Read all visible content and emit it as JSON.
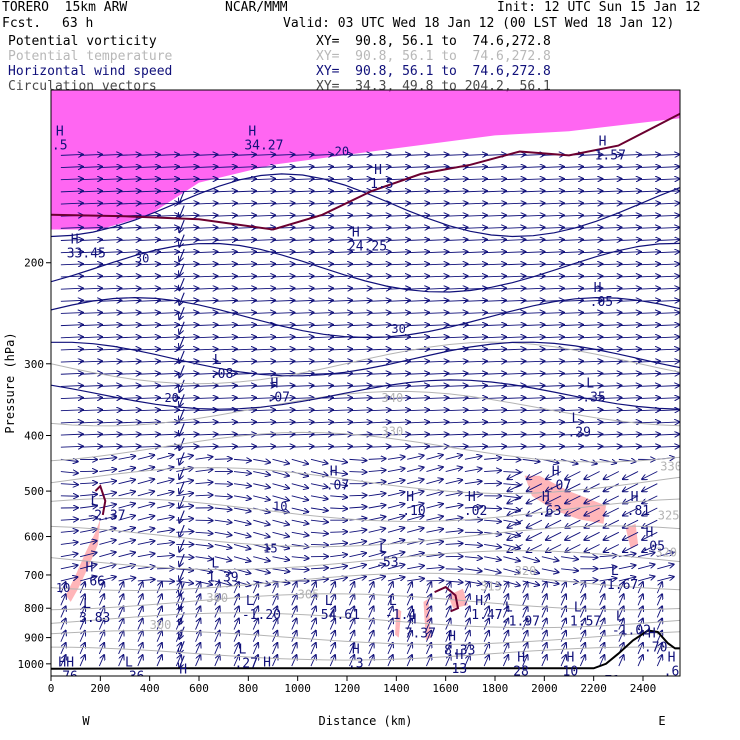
{
  "header": {
    "model": "TORERO  15km ARW",
    "fcst_label": "Fcst.",
    "fcst_value": "63 h",
    "org": "NCAR/MMM",
    "init": "Init: 12 UTC Sun 15 Jan 12",
    "valid": "Valid: 03 UTC Wed 18 Jan 12 (00 LST Wed 18 Jan 12)",
    "fields": [
      {
        "name": "Potential vorticity",
        "xy": "XY=  90.8, 56.1 to  74.6,272.8"
      },
      {
        "name": "Potential temperature",
        "xy": "XY=  90.8, 56.1 to  74.6,272.8"
      },
      {
        "name": "Horizontal wind speed",
        "xy": "XY=  90.8, 56.1 to  74.6,272.8"
      },
      {
        "name": "Circulation vectors",
        "xy": "XY=  34.3, 49.8 to 204.2, 56.1"
      }
    ]
  },
  "colors": {
    "pv_shade_light": "#ffb6b9",
    "pv_shade_strong": "#ff33ee",
    "pv_contour": "#6b0030",
    "theta": "#b4b4b4",
    "wind_contour": "#10107a",
    "vectors": "#10107a",
    "terrain": "#000000"
  },
  "chart_data": {
    "type": "cross-section",
    "xlabel": "Distance (km)",
    "ylabel": "Pressure (hPa)",
    "xlim": [
      0,
      2550
    ],
    "ylim": [
      100,
      1050
    ],
    "y_scale": "log",
    "x_ticks": [
      0,
      200,
      400,
      600,
      800,
      1000,
      1200,
      1400,
      1600,
      1800,
      2000,
      2200,
      2400
    ],
    "y_ticks": [
      200,
      300,
      400,
      500,
      600,
      700,
      800,
      900,
      1000
    ],
    "end_labels": {
      "left": "W",
      "right": "E"
    },
    "terrain": [
      [
        0,
        1020
      ],
      [
        500,
        1018
      ],
      [
        560,
        1018
      ],
      [
        1000,
        1018
      ],
      [
        1500,
        1018
      ],
      [
        2000,
        1018
      ],
      [
        2200,
        1018
      ],
      [
        2250,
        1000
      ],
      [
        2300,
        960
      ],
      [
        2360,
        910
      ],
      [
        2420,
        875
      ],
      [
        2460,
        880
      ],
      [
        2500,
        920
      ],
      [
        2530,
        940
      ],
      [
        2550,
        940
      ]
    ],
    "pv_strong_region": [
      [
        0,
        100
      ],
      [
        2550,
        100
      ],
      [
        2550,
        112
      ],
      [
        2100,
        118
      ],
      [
        1800,
        120
      ],
      [
        1300,
        128
      ],
      [
        900,
        135
      ],
      [
        600,
        145
      ],
      [
        400,
        165
      ],
      [
        200,
        175
      ],
      [
        0,
        175
      ]
    ],
    "pv_light_blobs": [
      [
        [
          60,
          760
        ],
        [
          100,
          700
        ],
        [
          140,
          640
        ],
        [
          180,
          590
        ],
        [
          200,
          560
        ],
        [
          190,
          620
        ],
        [
          150,
          680
        ],
        [
          110,
          740
        ],
        [
          80,
          780
        ]
      ],
      [
        [
          1920,
          470
        ],
        [
          1980,
          470
        ],
        [
          2100,
          500
        ],
        [
          2250,
          530
        ],
        [
          2240,
          570
        ],
        [
          2140,
          560
        ],
        [
          2040,
          540
        ],
        [
          1950,
          510
        ]
      ],
      [
        [
          2330,
          580
        ],
        [
          2370,
          570
        ],
        [
          2380,
          620
        ],
        [
          2350,
          630
        ]
      ],
      [
        [
          1610,
          760
        ],
        [
          1670,
          740
        ],
        [
          1690,
          790
        ],
        [
          1630,
          800
        ]
      ],
      [
        [
          1510,
          780
        ],
        [
          1530,
          770
        ],
        [
          1540,
          900
        ],
        [
          1520,
          910
        ]
      ],
      [
        [
          1400,
          800
        ],
        [
          1420,
          810
        ],
        [
          1410,
          900
        ],
        [
          1395,
          890
        ]
      ]
    ],
    "pv_contours": [
      [
        [
          0,
          165
        ],
        [
          300,
          166
        ],
        [
          600,
          168
        ],
        [
          900,
          175
        ],
        [
          1100,
          165
        ],
        [
          1300,
          150
        ],
        [
          1500,
          140
        ],
        [
          1700,
          135
        ],
        [
          1900,
          128
        ],
        [
          2100,
          130
        ],
        [
          2300,
          125
        ],
        [
          2550,
          110
        ]
      ],
      [
        [
          180,
          500
        ],
        [
          200,
          490
        ],
        [
          220,
          520
        ],
        [
          210,
          550
        ]
      ],
      [
        [
          1555,
          750
        ],
        [
          1600,
          735
        ],
        [
          1640,
          760
        ],
        [
          1650,
          800
        ],
        [
          1620,
          810
        ]
      ]
    ],
    "theta_labels": [
      {
        "x": 1340,
        "y": 350,
        "text": "340"
      },
      {
        "x": 1340,
        "y": 400,
        "text": "330"
      },
      {
        "x": 2470,
        "y": 460,
        "text": "330"
      },
      {
        "x": 2460,
        "y": 560,
        "text": "325"
      },
      {
        "x": 2450,
        "y": 650,
        "text": "320"
      },
      {
        "x": 1880,
        "y": 700,
        "text": "320"
      },
      {
        "x": 1740,
        "y": 745,
        "text": "315"
      },
      {
        "x": 1000,
        "y": 770,
        "text": "305"
      },
      {
        "x": 630,
        "y": 780,
        "text": "300"
      },
      {
        "x": 400,
        "y": 870,
        "text": "300"
      }
    ],
    "wind_labels": [
      {
        "x": 1150,
        "y": 130,
        "text": "20"
      },
      {
        "x": 340,
        "y": 200,
        "text": "30"
      },
      {
        "x": 1380,
        "y": 265,
        "text": "30"
      },
      {
        "x": 460,
        "y": 350,
        "text": "20"
      },
      {
        "x": 20,
        "y": 750,
        "text": "10"
      },
      {
        "x": 900,
        "y": 540,
        "text": "10"
      },
      {
        "x": 860,
        "y": 640,
        "text": "15"
      }
    ],
    "hl_labels": [
      {
        "x": 20,
        "y": 120,
        "letter": "H",
        "value": ".5"
      },
      {
        "x": 800,
        "y": 120,
        "letter": "H",
        "value": "34.27"
      },
      {
        "x": 1310,
        "y": 140,
        "letter": "H",
        "value": "1.5"
      },
      {
        "x": 2220,
        "y": 125,
        "letter": "H",
        "value": "1.57"
      },
      {
        "x": 80,
        "y": 185,
        "letter": "H",
        "value": "33.45"
      },
      {
        "x": 1220,
        "y": 180,
        "letter": "H",
        "value": "24.25"
      },
      {
        "x": 2200,
        "y": 225,
        "letter": "H",
        "value": ".05"
      },
      {
        "x": 660,
        "y": 300,
        "letter": "L",
        "value": ".08"
      },
      {
        "x": 890,
        "y": 330,
        "letter": "H",
        "value": ".07"
      },
      {
        "x": 2170,
        "y": 330,
        "letter": "L",
        "value": ".35"
      },
      {
        "x": 2110,
        "y": 380,
        "letter": "L",
        "value": ".29"
      },
      {
        "x": 1130,
        "y": 470,
        "letter": "H",
        "value": ".07"
      },
      {
        "x": 1440,
        "y": 520,
        "letter": "H",
        "value": ".10"
      },
      {
        "x": 1690,
        "y": 520,
        "letter": "H",
        "value": ".02"
      },
      {
        "x": 1990,
        "y": 520,
        "letter": "H",
        "value": ".63"
      },
      {
        "x": 2350,
        "y": 520,
        "letter": "H",
        "value": ".81"
      },
      {
        "x": 2030,
        "y": 470,
        "letter": "H",
        "value": ".07"
      },
      {
        "x": 160,
        "y": 530,
        "letter": "L",
        "value": "-2.37"
      },
      {
        "x": 2410,
        "y": 600,
        "letter": "H",
        "value": ".05"
      },
      {
        "x": 1330,
        "y": 640,
        "letter": "L",
        "value": ".53"
      },
      {
        "x": 650,
        "y": 680,
        "letter": "L",
        "value": "1.39"
      },
      {
        "x": 2270,
        "y": 700,
        "letter": "L",
        "value": "1.67"
      },
      {
        "x": 140,
        "y": 690,
        "letter": "H",
        "value": ".66"
      },
      {
        "x": 130,
        "y": 800,
        "letter": "L",
        "value": "3.83"
      },
      {
        "x": 790,
        "y": 790,
        "letter": "L",
        "value": "-1.20"
      },
      {
        "x": 1110,
        "y": 790,
        "letter": "L",
        "value": "54.61"
      },
      {
        "x": 1370,
        "y": 790,
        "letter": "L",
        "value": "-1.4"
      },
      {
        "x": 1720,
        "y": 790,
        "letter": "H",
        "value": "1.47"
      },
      {
        "x": 1840,
        "y": 810,
        "letter": "L",
        "value": "-1.97"
      },
      {
        "x": 2120,
        "y": 810,
        "letter": "L",
        "value": "1.57"
      },
      {
        "x": 2290,
        "y": 840,
        "letter": "L",
        "value": "-1.02"
      },
      {
        "x": 1450,
        "y": 850,
        "letter": "H",
        "value": "7.37"
      },
      {
        "x": 1610,
        "y": 910,
        "letter": "H",
        "value": "8.33"
      },
      {
        "x": 2420,
        "y": 900,
        "letter": "H",
        "value": ".70"
      },
      {
        "x": 760,
        "y": 960,
        "letter": "L",
        "value": ".27"
      },
      {
        "x": 1220,
        "y": 960,
        "letter": "H",
        "value": ".3"
      },
      {
        "x": 1640,
        "y": 980,
        "letter": "H",
        "value": "13"
      },
      {
        "x": 1890,
        "y": 990,
        "letter": "H",
        "value": "28"
      },
      {
        "x": 2090,
        "y": 990,
        "letter": "H",
        "value": "10"
      },
      {
        "x": 2500,
        "y": 990,
        "letter": "H",
        "value": ".62"
      },
      {
        "x": 300,
        "y": 1010,
        "letter": "L",
        "value": ".36"
      },
      {
        "x": 30,
        "y": 1010,
        "letter": "HH",
        "value": ".76"
      },
      {
        "x": 860,
        "y": 1010,
        "letter": "H",
        "value": ""
      },
      {
        "x": 520,
        "y": 1040,
        "letter": "H",
        "value": "5.32"
      },
      {
        "x": 850,
        "y": 1040,
        "letter": "",
        "value": "4.97"
      },
      {
        "x": 2260,
        "y": 1030,
        "letter": "",
        "value": "71"
      }
    ]
  }
}
